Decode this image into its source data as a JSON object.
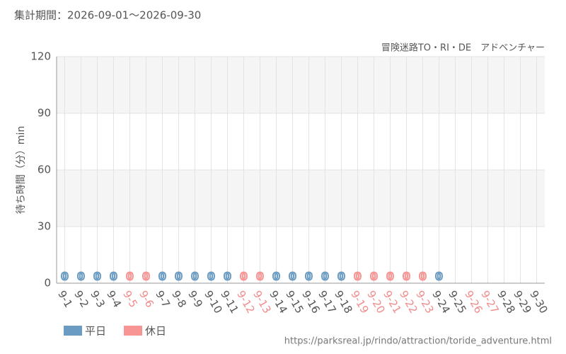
{
  "chart_data": {
    "type": "bar",
    "title": "集計期間：2026-09-01～2026-09-30",
    "subtitle": "冒険迷路TO・RI・DE　アドベンチャー",
    "y_label": "待ち時間（分）min",
    "source": "https://parksreal.jp/rindo/attraction/toride_adventure.html",
    "categories": [
      "9-1",
      "9-2",
      "9-3",
      "9-4",
      "9-5",
      "9-6",
      "9-7",
      "9-8",
      "9-9",
      "9-10",
      "9-11",
      "9-12",
      "9-13",
      "9-14",
      "9-15",
      "9-16",
      "9-17",
      "9-18",
      "9-19",
      "9-20",
      "9-21",
      "9-22",
      "9-23",
      "9-24",
      "9-25",
      "9-26",
      "9-27",
      "9-28",
      "9-29",
      "9-30"
    ],
    "category_label_colors": [
      "#555",
      "#555",
      "#555",
      "#555",
      "#f28b8b",
      "#f28b8b",
      "#555",
      "#555",
      "#555",
      "#555",
      "#555",
      "#f28b8b",
      "#f28b8b",
      "#555",
      "#555",
      "#555",
      "#555",
      "#555",
      "#f28b8b",
      "#f28b8b",
      "#f28b8b",
      "#f28b8b",
      "#f28b8b",
      "#555",
      "#555",
      "#f28b8b",
      "#f28b8b",
      "#555",
      "#555",
      "#555"
    ],
    "series": [
      {
        "name": "平日",
        "color": "#6a9bc3",
        "values": [
          0,
          0,
          0,
          0,
          null,
          null,
          0,
          0,
          0,
          0,
          0,
          null,
          null,
          0,
          0,
          0,
          0,
          0,
          null,
          null,
          null,
          null,
          null,
          0,
          null,
          null,
          null,
          null,
          null,
          null
        ]
      },
      {
        "name": "休日",
        "color": "#f79494",
        "values": [
          null,
          null,
          null,
          null,
          0,
          0,
          null,
          null,
          null,
          null,
          null,
          0,
          0,
          null,
          null,
          null,
          null,
          null,
          0,
          0,
          0,
          0,
          0,
          null,
          null,
          null,
          null,
          null,
          null,
          null
        ]
      }
    ],
    "ylim": [
      0,
      120
    ],
    "yticks": [
      0,
      30,
      60,
      90,
      120
    ],
    "grid": true
  }
}
